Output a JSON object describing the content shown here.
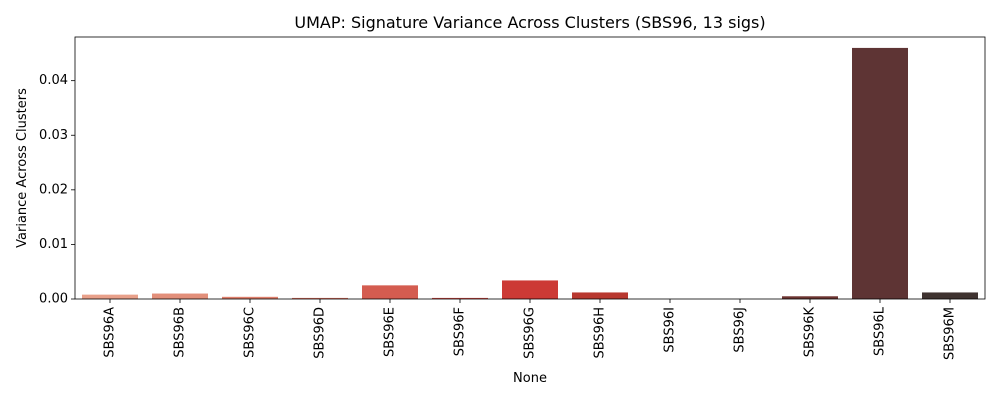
{
  "chart_data": {
    "type": "bar",
    "title": "UMAP: Signature Variance Across Clusters (SBS96, 13 sigs)",
    "xlabel": "None",
    "ylabel": "Variance Across Clusters",
    "categories": [
      "SBS96A",
      "SBS96B",
      "SBS96C",
      "SBS96D",
      "SBS96E",
      "SBS96F",
      "SBS96G",
      "SBS96H",
      "SBS96I",
      "SBS96J",
      "SBS96K",
      "SBS96L",
      "SBS96M"
    ],
    "values": [
      0.0008,
      0.001,
      0.0004,
      0.0002,
      0.0025,
      0.0002,
      0.0034,
      0.0012,
      0.0,
      0.0,
      0.0005,
      0.046,
      0.0012
    ],
    "colors": [
      "#e8a08a",
      "#e28f7a",
      "#de7f6c",
      "#da6e5e",
      "#d45c50",
      "#d04a43",
      "#cc3a35",
      "#b8382f",
      "#9c3a30",
      "#7f3a30",
      "#6e3632",
      "#5e3434",
      "#3f3330"
    ],
    "yticks": [
      0.0,
      0.01,
      0.02,
      0.03,
      0.04
    ],
    "ytick_labels": [
      "0.00",
      "0.01",
      "0.02",
      "0.03",
      "0.04"
    ],
    "ylim": [
      0,
      0.048
    ],
    "grid": false,
    "legend": "none"
  }
}
